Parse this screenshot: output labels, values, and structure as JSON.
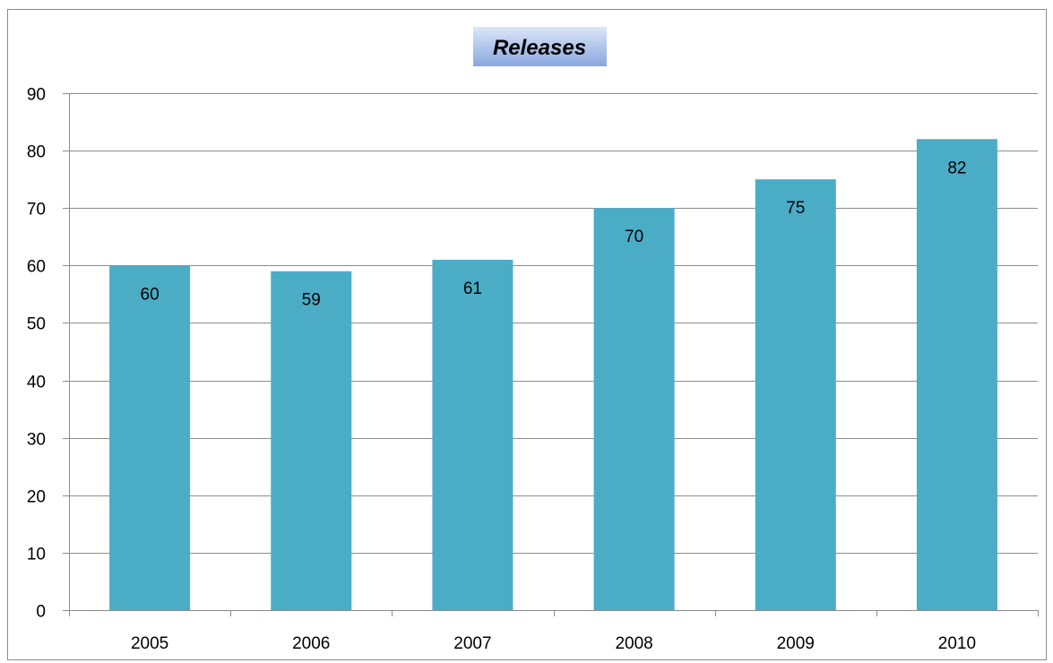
{
  "chart_data": {
    "type": "bar",
    "title": "Releases",
    "xlabel": "",
    "ylabel": "",
    "categories": [
      "2005",
      "2006",
      "2007",
      "2008",
      "2009",
      "2010"
    ],
    "values": [
      60,
      59,
      61,
      70,
      75,
      82
    ],
    "data_labels": [
      "60",
      "59",
      "61",
      "70",
      "75",
      "82"
    ],
    "ylim": [
      0,
      90
    ],
    "yticks": [
      0,
      10,
      20,
      30,
      40,
      50,
      60,
      70,
      80,
      90
    ],
    "ytick_labels": [
      "0",
      "10",
      "20",
      "30",
      "40",
      "50",
      "60",
      "70",
      "80",
      "90"
    ],
    "grid": true,
    "legend": "none",
    "colors": {
      "bar": "#4bacc6",
      "grid": "#8c8c8c",
      "axis": "#8c8c8c",
      "title_bg_top": "#dce6f7",
      "title_bg_bottom": "#8aa8e0"
    }
  }
}
